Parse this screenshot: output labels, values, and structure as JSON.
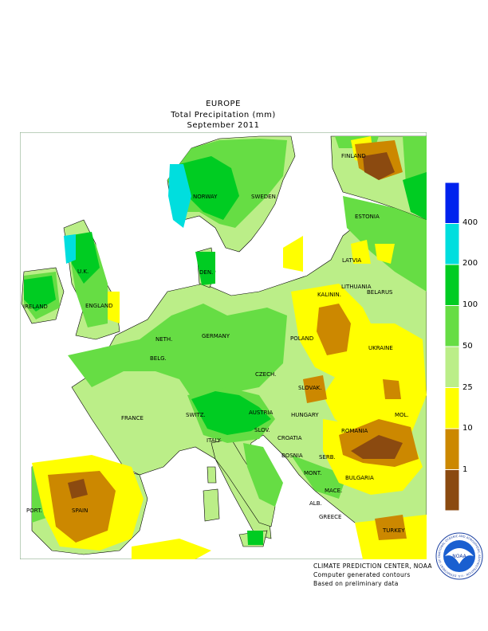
{
  "titles": {
    "line1": "EUROPE",
    "line2": "Total Precipitation (mm)",
    "line3": "September 2011"
  },
  "countries": [
    {
      "key": "finland",
      "label": "FINLAND"
    },
    {
      "key": "norway",
      "label": "NORWAY"
    },
    {
      "key": "sweden",
      "label": "SWEDEN"
    },
    {
      "key": "estonia",
      "label": "ESTONIA"
    },
    {
      "key": "latvia",
      "label": "LATVIA"
    },
    {
      "key": "den",
      "label": "DEN."
    },
    {
      "key": "lithuania",
      "label": "LITHUANIA"
    },
    {
      "key": "kalinin",
      "label": "KALININ."
    },
    {
      "key": "belarus",
      "label": "BELARUS"
    },
    {
      "key": "uk",
      "label": "U.K."
    },
    {
      "key": "ireland",
      "label": "IRELAND"
    },
    {
      "key": "england",
      "label": "ENGLAND"
    },
    {
      "key": "neth",
      "label": "NETH."
    },
    {
      "key": "belg",
      "label": "BELG."
    },
    {
      "key": "germany",
      "label": "GERMANY"
    },
    {
      "key": "poland",
      "label": "POLAND"
    },
    {
      "key": "czech",
      "label": "CZECH."
    },
    {
      "key": "slovak",
      "label": "SLOVAK."
    },
    {
      "key": "ukraine",
      "label": "UKRAINE"
    },
    {
      "key": "austria",
      "label": "AUSTRIA"
    },
    {
      "key": "hungary",
      "label": "HUNGARY"
    },
    {
      "key": "france",
      "label": "FRANCE"
    },
    {
      "key": "switz",
      "label": "SWITZ."
    },
    {
      "key": "slov",
      "label": "SLOV."
    },
    {
      "key": "mol",
      "label": "MOL."
    },
    {
      "key": "romania",
      "label": "ROMANIA"
    },
    {
      "key": "croatia",
      "label": "CROATIA"
    },
    {
      "key": "italy",
      "label": "ITALY"
    },
    {
      "key": "bosnia",
      "label": "BOSNIA"
    },
    {
      "key": "serb",
      "label": "SERB."
    },
    {
      "key": "mont",
      "label": "MONT."
    },
    {
      "key": "bulgaria",
      "label": "BULGARIA"
    },
    {
      "key": "mace",
      "label": "MACE."
    },
    {
      "key": "port",
      "label": "PORT."
    },
    {
      "key": "spain",
      "label": "SPAIN"
    },
    {
      "key": "alb",
      "label": "ALB."
    },
    {
      "key": "greece",
      "label": "GREECE"
    },
    {
      "key": "turkey",
      "label": "TURKEY"
    }
  ],
  "legend": {
    "thresholds": [
      "400",
      "200",
      "100",
      "50",
      "25",
      "10",
      "1"
    ],
    "colors": [
      "#0022ee",
      "#00dede",
      "#00cc22",
      "#66dd44",
      "#bbee88",
      "#ffff00",
      "#cc8800",
      "#8b4a10"
    ],
    "unit_note": ""
  },
  "credits": {
    "line1": "CLIMATE PREDICTION CENTER, NOAA",
    "line2": "Computer generated contours",
    "line3": "Based on preliminary data"
  },
  "logo": {
    "center": "NOAA",
    "ring": "NATIONAL OCEANIC AND ATMOSPHERIC ADMINISTRATION · U.S. DEPARTMENT OF COMMERCE"
  }
}
